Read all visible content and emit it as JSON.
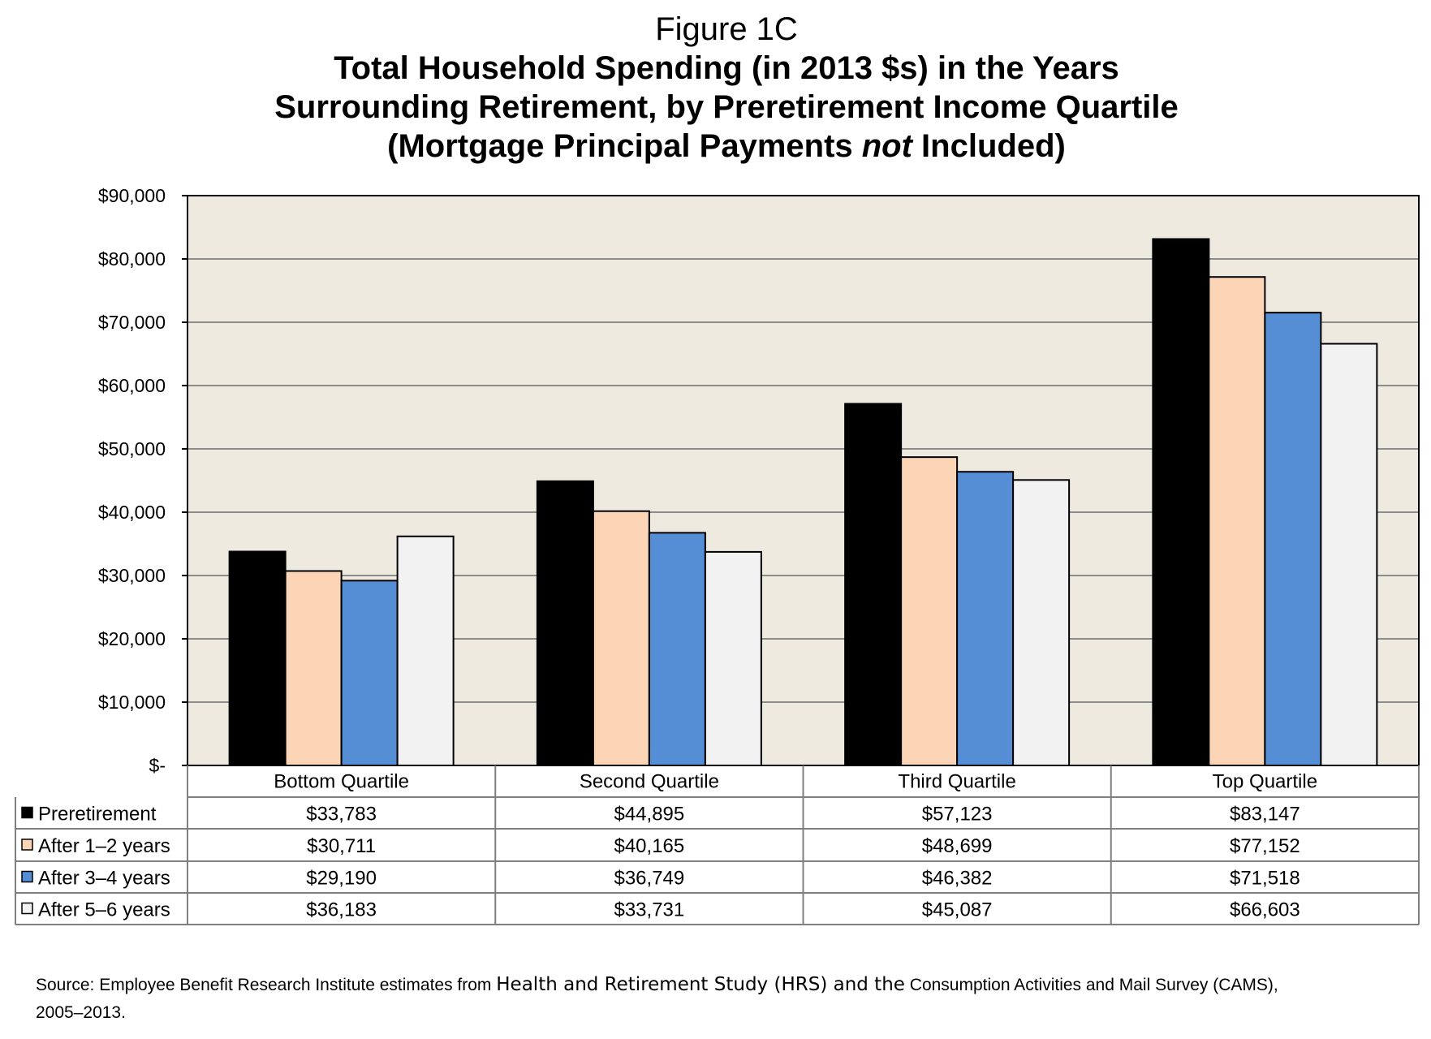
{
  "figure_label": "Figure 1C",
  "chart_data": {
    "type": "bar",
    "title_lines": [
      "Total Household Spending (in 2013 $s) in the Years",
      "Surrounding Retirement, by Preretirement Income Quartile"
    ],
    "title_line3": {
      "pre": "(Mortgage Principal Payments ",
      "em": "not",
      "post": " Included)"
    },
    "categories": [
      "Bottom Quartile",
      "Second Quartile",
      "Third Quartile",
      "Top Quartile"
    ],
    "series": [
      {
        "name": "Preretirement",
        "color": "#000000",
        "values": [
          33783,
          44895,
          57123,
          83147
        ]
      },
      {
        "name": "After 1–2 years",
        "color": "#FBD5B5",
        "values": [
          30711,
          40165,
          48699,
          77152
        ]
      },
      {
        "name": "After 3–4 years",
        "color": "#558ED5",
        "values": [
          29190,
          36749,
          46382,
          71518
        ]
      },
      {
        "name": "After 5–6 years",
        "color": "#F2F2F2",
        "values": [
          36183,
          33731,
          45087,
          66603
        ]
      }
    ],
    "table_values": [
      [
        "$33,783",
        "$44,895",
        "$57,123",
        "$83,147"
      ],
      [
        "$30,711",
        "$40,165",
        "$48,699",
        "$77,152"
      ],
      [
        "$29,190",
        "$36,749",
        "$46,382",
        "$71,518"
      ],
      [
        "$36,183",
        "$33,731",
        "$45,087",
        "$66,603"
      ]
    ],
    "y_ticks": [
      0,
      10000,
      20000,
      30000,
      40000,
      50000,
      60000,
      70000,
      80000,
      90000
    ],
    "y_tick_labels": [
      "$-",
      "$10,000",
      "$20,000",
      "$30,000",
      "$40,000",
      "$50,000",
      "$60,000",
      "$70,000",
      "$80,000",
      "$90,000"
    ],
    "ylim": [
      0,
      90000
    ],
    "grid": true,
    "legend": "data-table",
    "plot_background": "#EEEAE0",
    "gridline_color": "#8C8C8C"
  },
  "source": {
    "part1": "Source: Employee Benefit Research Institute estimates from ",
    "part2": "Health and Retirement Study (HRS) and the",
    "part3": " Consumption Activities and Mail Survey (CAMS),",
    "part4": "2005–2013."
  }
}
